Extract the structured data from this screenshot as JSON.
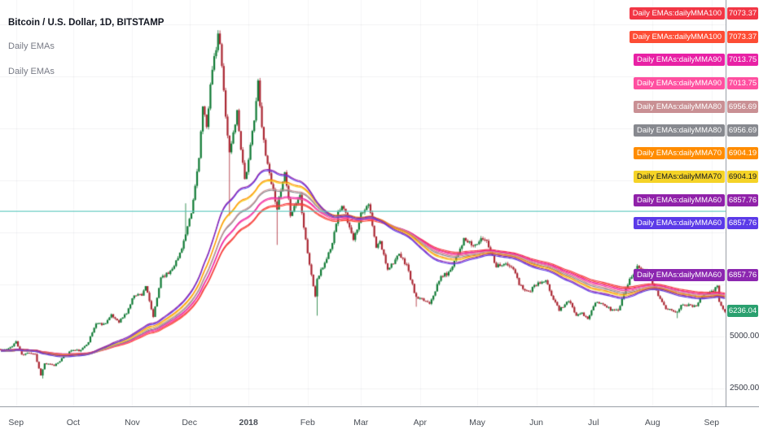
{
  "legend": {
    "title": "Bitcoin / U.S. Dollar, 1D, BITSTAMP",
    "indicators": [
      "Daily EMAs",
      "Daily EMAs"
    ]
  },
  "price_axis": {
    "labels": [
      {
        "text": "Daily EMAs:dailyMMA100",
        "value": "7073.37",
        "color": "#f23645",
        "text_color": "#ffffff"
      },
      {
        "text": "Daily EMAs:dailyMMA100",
        "value": "7073.37",
        "color": "#fd4c34",
        "text_color": "#ffffff"
      },
      {
        "text": "Daily EMAs:dailyMMA90",
        "value": "7013.75",
        "color": "#e821a5",
        "text_color": "#ffffff"
      },
      {
        "text": "Daily EMAs:dailyMMA90",
        "value": "7013.75",
        "color": "#ff4fa0",
        "text_color": "#ffffff"
      },
      {
        "text": "Daily EMAs:dailyMMA80",
        "value": "6956.69",
        "color": "#c99094",
        "text_color": "#ffffff"
      },
      {
        "text": "Daily EMAs:dailyMMA80",
        "value": "6956.69",
        "color": "#87898f",
        "text_color": "#ffffff"
      },
      {
        "text": "Daily EMAs:dailyMMA70",
        "value": "6904.19",
        "color": "#ff8c00",
        "text_color": "#ffffff"
      },
      {
        "text": "Daily EMAs:dailyMMA70",
        "value": "6904.19",
        "color": "#f5d327",
        "text_color": "#131722"
      },
      {
        "text": "Daily EMAs:dailyMMA60",
        "value": "6857.76",
        "color": "#9021a9",
        "text_color": "#ffffff"
      },
      {
        "text": "Daily EMAs:dailyMMA60",
        "value": "6857.76",
        "color": "#5b3ae8",
        "text_color": "#ffffff"
      },
      {
        "text": "Daily EMAs:dailyMMA60",
        "value": "6857.76",
        "color": "#8c27b0",
        "text_color": "#ffffff"
      }
    ],
    "last_price": {
      "value": "6236.04",
      "color": "#2aa06f"
    }
  },
  "chart_data": {
    "type": "candlestick",
    "title": "Bitcoin / U.S. Dollar, 1D, BITSTAMP",
    "exchange": "BITSTAMP",
    "interval": "1D",
    "scale": "linear",
    "y_ticks": [
      {
        "label": "5000.00",
        "value": 5000
      },
      {
        "label": "2500.00",
        "value": 2500
      }
    ],
    "x_labels": [
      {
        "label": "Sep",
        "date": "2017-09-01"
      },
      {
        "label": "Oct",
        "date": "2017-10-01"
      },
      {
        "label": "Nov",
        "date": "2017-11-01"
      },
      {
        "label": "Dec",
        "date": "2017-12-01"
      },
      {
        "label": "2018",
        "date": "2018-01-01"
      },
      {
        "label": "Feb",
        "date": "2018-02-01"
      },
      {
        "label": "Mar",
        "date": "2018-03-01"
      },
      {
        "label": "Apr",
        "date": "2018-04-01"
      },
      {
        "label": "May",
        "date": "2018-05-01"
      },
      {
        "label": "Jun",
        "date": "2018-06-01"
      },
      {
        "label": "Jul",
        "date": "2018-07-01"
      },
      {
        "label": "Aug",
        "date": "2018-08-01"
      },
      {
        "label": "Sep",
        "date": "2018-09-01"
      }
    ],
    "price_path": [
      [
        "2017-08-24",
        4350
      ],
      [
        "2017-08-28",
        4390
      ],
      [
        "2017-09-01",
        4750
      ],
      [
        "2017-09-04",
        4100
      ],
      [
        "2017-09-08",
        4230
      ],
      [
        "2017-09-11",
        4160
      ],
      [
        "2017-09-14",
        3150
      ],
      [
        "2017-09-16",
        3700
      ],
      [
        "2017-09-21",
        3600
      ],
      [
        "2017-09-25",
        3930
      ],
      [
        "2017-09-30",
        4340
      ],
      [
        "2017-10-05",
        4320
      ],
      [
        "2017-10-09",
        4770
      ],
      [
        "2017-10-13",
        5640
      ],
      [
        "2017-10-17",
        5590
      ],
      [
        "2017-10-21",
        6000
      ],
      [
        "2017-10-25",
        5730
      ],
      [
        "2017-10-29",
        6130
      ],
      [
        "2017-11-02",
        7020
      ],
      [
        "2017-11-06",
        7020
      ],
      [
        "2017-11-08",
        7440
      ],
      [
        "2017-11-12",
        5950
      ],
      [
        "2017-11-16",
        7870
      ],
      [
        "2017-11-20",
        8040
      ],
      [
        "2017-11-25",
        8760
      ],
      [
        "2017-11-29",
        9880
      ],
      [
        "2017-12-02",
        10900
      ],
      [
        "2017-12-06",
        13700
      ],
      [
        "2017-12-08",
        16000
      ],
      [
        "2017-12-10",
        15000
      ],
      [
        "2017-12-12",
        17250
      ],
      [
        "2017-12-16",
        19380
      ],
      [
        "2017-12-17",
        19100
      ],
      [
        "2017-12-22",
        13800
      ],
      [
        "2017-12-26",
        15800
      ],
      [
        "2017-12-30",
        12600
      ],
      [
        "2018-01-01",
        13400
      ],
      [
        "2018-01-06",
        17170
      ],
      [
        "2018-01-08",
        15000
      ],
      [
        "2018-01-11",
        13300
      ],
      [
        "2018-01-16",
        11200
      ],
      [
        "2018-01-20",
        12800
      ],
      [
        "2018-01-23",
        10900
      ],
      [
        "2018-01-28",
        11800
      ],
      [
        "2018-02-01",
        9050
      ],
      [
        "2018-02-05",
        6950
      ],
      [
        "2018-02-06",
        7750
      ],
      [
        "2018-02-10",
        8550
      ],
      [
        "2018-02-14",
        9480
      ],
      [
        "2018-02-17",
        11100
      ],
      [
        "2018-02-20",
        11230
      ],
      [
        "2018-02-25",
        9590
      ],
      [
        "2018-03-01",
        10900
      ],
      [
        "2018-03-05",
        11450
      ],
      [
        "2018-03-09",
        9250
      ],
      [
        "2018-03-11",
        9540
      ],
      [
        "2018-03-15",
        8270
      ],
      [
        "2018-03-21",
        8900
      ],
      [
        "2018-03-25",
        8450
      ],
      [
        "2018-03-30",
        6850
      ],
      [
        "2018-04-06",
        6630
      ],
      [
        "2018-04-12",
        7890
      ],
      [
        "2018-04-16",
        8050
      ],
      [
        "2018-04-20",
        8860
      ],
      [
        "2018-04-24",
        9650
      ],
      [
        "2018-04-29",
        9350
      ],
      [
        "2018-05-04",
        9700
      ],
      [
        "2018-05-06",
        9620
      ],
      [
        "2018-05-11",
        8400
      ],
      [
        "2018-05-15",
        8500
      ],
      [
        "2018-05-20",
        8250
      ],
      [
        "2018-05-23",
        7500
      ],
      [
        "2018-05-28",
        7130
      ],
      [
        "2018-06-01",
        7500
      ],
      [
        "2018-06-06",
        7650
      ],
      [
        "2018-06-10",
        6790
      ],
      [
        "2018-06-13",
        6300
      ],
      [
        "2018-06-18",
        6710
      ],
      [
        "2018-06-22",
        6050
      ],
      [
        "2018-06-24",
        6160
      ],
      [
        "2018-06-28",
        5870
      ],
      [
        "2018-07-02",
        6600
      ],
      [
        "2018-07-06",
        6550
      ],
      [
        "2018-07-10",
        6300
      ],
      [
        "2018-07-14",
        6250
      ],
      [
        "2018-07-18",
        7380
      ],
      [
        "2018-07-24",
        8400
      ],
      [
        "2018-07-28",
        8200
      ],
      [
        "2018-07-31",
        7750
      ],
      [
        "2018-08-04",
        7020
      ],
      [
        "2018-08-08",
        6290
      ],
      [
        "2018-08-11",
        6250
      ],
      [
        "2018-08-14",
        6240
      ],
      [
        "2018-08-17",
        6580
      ],
      [
        "2018-08-21",
        6470
      ],
      [
        "2018-08-24",
        6530
      ],
      [
        "2018-08-28",
        7100
      ],
      [
        "2018-09-01",
        7190
      ],
      [
        "2018-09-04",
        7370
      ],
      [
        "2018-09-05",
        6700
      ],
      [
        "2018-09-06",
        6500
      ],
      [
        "2018-09-08",
        6236
      ]
    ],
    "key_extremes": [
      {
        "date": "2017-09-15",
        "low": 2980
      },
      {
        "date": "2017-11-29",
        "high": 11400
      },
      {
        "date": "2017-12-17",
        "high": 19666
      },
      {
        "date": "2017-12-22",
        "low": 10800
      },
      {
        "date": "2018-01-16",
        "low": 9400
      },
      {
        "date": "2018-02-06",
        "low": 6000
      },
      {
        "date": "2018-03-30",
        "low": 6430
      },
      {
        "date": "2018-06-29",
        "low": 5780
      },
      {
        "date": "2018-08-14",
        "low": 5880
      }
    ],
    "ema_periods": [
      100,
      90,
      80,
      70,
      60
    ],
    "ema_colors": {
      "100": [
        "#f23645",
        "#fd4c34"
      ],
      "90": [
        "#e821a5",
        "#ff4fa0"
      ],
      "80": [
        "#c99094",
        "#87898f"
      ],
      "70": [
        "#ff8c00",
        "#f5d327"
      ],
      "60": [
        "#9021a9",
        "#5b3ae8"
      ]
    },
    "ema_current_values": {
      "100": 7073.37,
      "90": 7013.75,
      "80": 6956.69,
      "70": 6904.19,
      "60": 6857.76
    },
    "horizontal_line": {
      "price": 11000,
      "color": "#5fc8bf"
    },
    "last_price": 6236.04,
    "candle_up_color": "#0f7a34",
    "candle_down_color": "#aa2531"
  }
}
